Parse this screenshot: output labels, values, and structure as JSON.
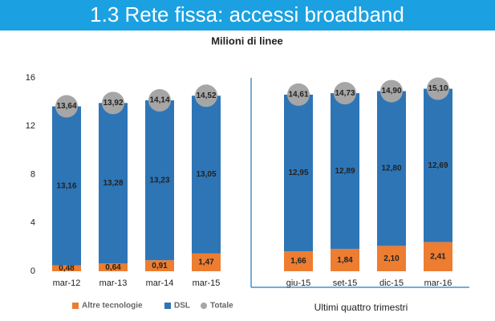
{
  "chart_data": {
    "type": "bar",
    "title": "1.3 Rete fissa: accessi broadband",
    "subtitle": "Milioni di linee",
    "annotation": "Ultimi quattro trimestri",
    "categories": [
      "mar-12",
      "mar-13",
      "mar-14",
      "mar-15",
      "giu-15",
      "set-15",
      "dic-15",
      "mar-16"
    ],
    "series": [
      {
        "name": "Altre tecnologie",
        "color": "#ed7d31",
        "values": [
          0.48,
          0.64,
          0.91,
          1.47,
          1.66,
          1.84,
          2.1,
          2.41
        ],
        "value_labels": [
          "0,48",
          "0,64",
          "0,91",
          "1,47",
          "1,66",
          "1,84",
          "2,10",
          "2,41"
        ]
      },
      {
        "name": "DSL",
        "color": "#2e75b6",
        "values": [
          13.16,
          13.28,
          13.23,
          13.05,
          12.95,
          12.89,
          12.8,
          12.69
        ],
        "value_labels": [
          "13,16",
          "13,28",
          "13,23",
          "13,05",
          "12,95",
          "12,89",
          "12,80",
          "12,69"
        ]
      },
      {
        "name": "Totale",
        "color": "#a6a6a6",
        "values": [
          13.64,
          13.92,
          14.14,
          14.52,
          14.61,
          14.73,
          14.9,
          15.1
        ],
        "value_labels": [
          "13,64",
          "13,92",
          "14,14",
          "14,52",
          "14,61",
          "14,73",
          "14,90",
          "15,10"
        ]
      }
    ],
    "ylim": [
      0,
      16
    ],
    "yticks": [
      0,
      4,
      8,
      12,
      16
    ],
    "grid": false
  }
}
